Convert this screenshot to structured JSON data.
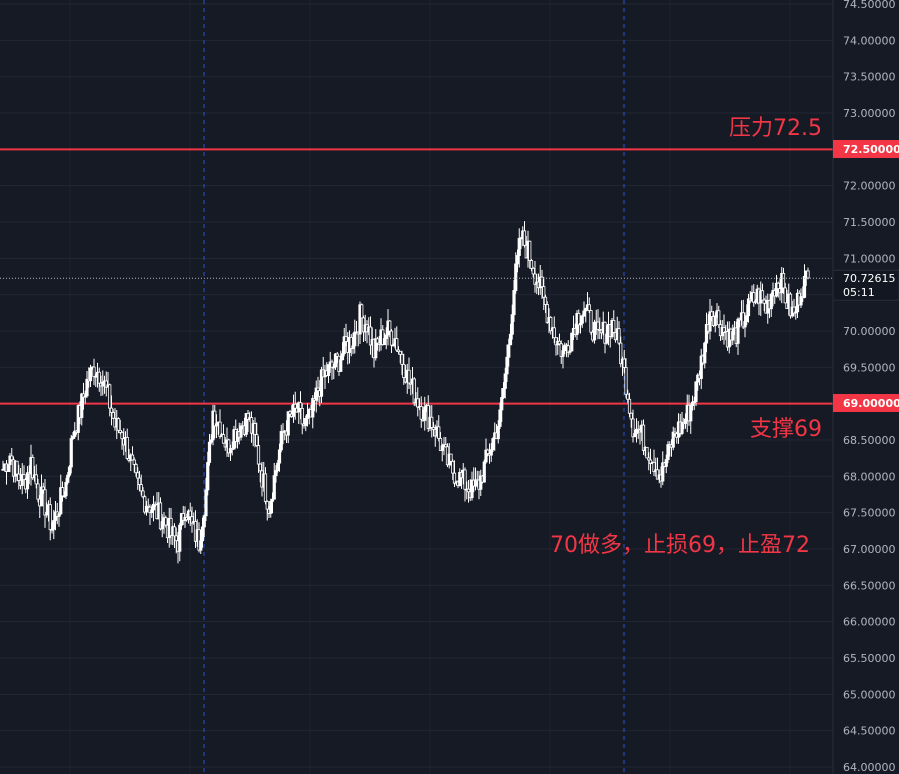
{
  "chart_data": {
    "type": "candlestick",
    "ylim": [
      64.0,
      74.5
    ],
    "y_ticks": [
      "74.50000",
      "74.00000",
      "73.50000",
      "73.00000",
      "72.50000",
      "72.00000",
      "71.50000",
      "71.00000",
      "70.50000",
      "70.00000",
      "69.50000",
      "69.00000",
      "68.50000",
      "68.00000",
      "67.50000",
      "67.00000",
      "66.50000",
      "66.00000",
      "65.50000",
      "65.00000",
      "64.50000",
      "64.00000"
    ],
    "current_price": "70.72615",
    "countdown": "05:11",
    "levels": [
      {
        "value": 72.5,
        "label": "72.50000",
        "annotation": "压力72.5",
        "color": "#f23645"
      },
      {
        "value": 69.0,
        "label": "69.00000",
        "annotation": "支撑69",
        "color": "#f23645"
      }
    ],
    "note": "70做多，止损69，止盈72",
    "grid": true,
    "session_separators": 2,
    "close_path": [
      68.1,
      68.3,
      68.0,
      67.9,
      68.2,
      67.8,
      67.6,
      67.3,
      67.6,
      67.9,
      68.6,
      68.9,
      69.3,
      69.5,
      69.4,
      69.1,
      68.7,
      68.6,
      68.3,
      67.9,
      67.7,
      67.6,
      67.5,
      67.4,
      67.2,
      67.1,
      67.6,
      67.3,
      67.1,
      67.8,
      68.9,
      68.7,
      68.4,
      68.6,
      68.7,
      68.8,
      68.5,
      68.0,
      67.6,
      68.1,
      68.6,
      68.8,
      68.9,
      68.7,
      68.8,
      69.2,
      69.4,
      69.5,
      69.6,
      69.8,
      69.9,
      70.2,
      70.1,
      69.7,
      69.9,
      70.0,
      69.9,
      69.6,
      69.3,
      69.1,
      68.9,
      68.8,
      68.6,
      68.3,
      68.1,
      68.0,
      67.9,
      67.8,
      67.9,
      68.2,
      68.5,
      68.8,
      69.6,
      70.6,
      71.3,
      71.1,
      70.8,
      70.5,
      70.2,
      69.9,
      69.7,
      69.9,
      70.2,
      70.3,
      70.1,
      69.9,
      70.0,
      70.1,
      69.8,
      69.3,
      68.7,
      68.6,
      68.4,
      68.2,
      68.0,
      68.3,
      68.6,
      68.7,
      68.9,
      69.2,
      69.7,
      70.3,
      70.2,
      70.0,
      69.9,
      70.0,
      70.2,
      70.4,
      70.5,
      70.3,
      70.6,
      70.7,
      70.4,
      70.2,
      70.6,
      70.73
    ]
  }
}
